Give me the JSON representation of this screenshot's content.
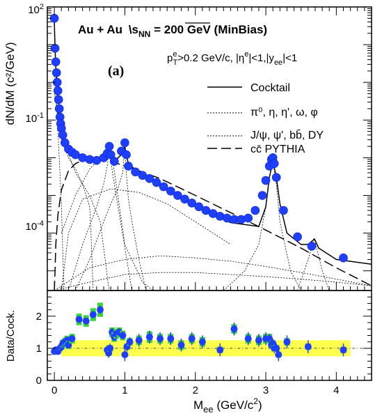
{
  "chart_data": [
    {
      "type": "scatter",
      "panel": "top",
      "title_parts": {
        "system": "Au + Au",
        "sqrt": "s",
        "sub": "NN",
        "rest": " = 200 GeV (MinBias)"
      },
      "cuts_parts": {
        "p": "p",
        "pe": "e",
        "pT": "T",
        "pt_cut": ">0.2 GeV/c, |",
        "eta": "η",
        "etae": "e",
        "eta_cut": "|<1,|y",
        "yee": "ee",
        "y_cut": "|<1"
      },
      "panel_label": "(a)",
      "ylabel": "dN/dM (c²/GeV)",
      "yscale": "log",
      "ylim": [
        3e-06,
        100
      ],
      "xlim": [
        -0.1,
        4.5
      ],
      "ytick_labels": [
        {
          "base": "10",
          "exp": "2",
          "value": 100
        },
        {
          "base": "10",
          "exp": "-1",
          "value": 0.1
        },
        {
          "base": "10",
          "exp": "-4",
          "value": 0.0001
        }
      ],
      "legend": [
        {
          "label": "Cocktail",
          "style": "solid"
        },
        {
          "label": "π⁰, η, η', ω, φ",
          "style": "dotted"
        },
        {
          "label": "J/ψ, ψ', bb̄, DY",
          "style": "dotted"
        },
        {
          "label": "cc̄ PYTHIA",
          "style": "dashed"
        }
      ],
      "series": [
        {
          "style": "points",
          "color": "#1f3fff",
          "x": [
            0.0,
            0.01,
            0.02,
            0.03,
            0.04,
            0.05,
            0.06,
            0.07,
            0.08,
            0.09,
            0.1,
            0.12,
            0.15,
            0.2,
            0.25,
            0.3,
            0.4,
            0.5,
            0.6,
            0.7,
            0.75,
            0.78,
            0.8,
            0.85,
            0.95,
            1.0,
            1.02,
            1.05,
            1.15,
            1.25,
            1.35,
            1.45,
            1.55,
            1.65,
            1.75,
            1.85,
            1.95,
            2.05,
            2.15,
            2.25,
            2.35,
            2.45,
            2.55,
            2.65,
            2.75,
            2.85,
            2.95,
            3.0,
            3.05,
            3.08,
            3.1,
            3.12,
            3.15,
            3.25,
            3.45,
            3.65,
            4.1
          ],
          "y": [
            50,
            8,
            3.5,
            1.8,
            1.0,
            0.6,
            0.35,
            0.2,
            0.12,
            0.08,
            0.06,
            0.04,
            0.025,
            0.017,
            0.014,
            0.012,
            0.01,
            0.009,
            0.0085,
            0.01,
            0.013,
            0.02,
            0.012,
            0.008,
            0.015,
            0.025,
            0.012,
            0.006,
            0.0042,
            0.0034,
            0.0028,
            0.0022,
            0.0017,
            0.0013,
            0.001,
            0.0008,
            0.00063,
            0.0005,
            0.0004,
            0.00033,
            0.00028,
            0.00025,
            0.00023,
            0.00023,
            0.00025,
            0.0004,
            0.001,
            0.0025,
            0.006,
            0.009,
            0.01,
            0.007,
            0.003,
            0.0004,
            8e-05,
            4.5e-05,
            2.2e-05
          ]
        },
        {
          "style": "solid",
          "name": "Cocktail",
          "x": [
            0.0,
            0.01,
            0.02,
            0.04,
            0.06,
            0.08,
            0.1,
            0.15,
            0.2,
            0.3,
            0.4,
            0.5,
            0.6,
            0.7,
            0.75,
            0.78,
            0.8,
            0.85,
            0.95,
            1.0,
            1.02,
            1.05,
            1.2,
            1.5,
            2.0,
            2.5,
            2.9,
            3.0,
            3.05,
            3.1,
            3.15,
            3.2,
            3.3,
            3.5,
            3.6,
            3.69,
            3.75,
            4.0,
            4.5
          ],
          "y": [
            40,
            8,
            2.5,
            0.8,
            0.3,
            0.12,
            0.07,
            0.03,
            0.017,
            0.011,
            0.009,
            0.008,
            0.008,
            0.01,
            0.013,
            0.025,
            0.012,
            0.008,
            0.012,
            0.02,
            0.012,
            0.007,
            0.004,
            0.0018,
            0.0005,
            0.00019,
            0.00015,
            0.0005,
            0.003,
            0.008,
            0.003,
            0.0006,
            0.0001,
            5e-05,
            5e-05,
            7e-05,
            4e-05,
            2e-05,
            1.5e-05
          ]
        },
        {
          "style": "dashed",
          "name": "cc̄ PYTHIA",
          "x": [
            0.0,
            0.01,
            0.02,
            0.05,
            0.1,
            0.2,
            0.3,
            0.4,
            0.5,
            0.6,
            0.7,
            0.8,
            1.0,
            1.2,
            1.5,
            2.0,
            2.5,
            3.0,
            3.5,
            4.0,
            4.5
          ],
          "y": [
            3e-06,
            1e-05,
            5e-05,
            0.0003,
            0.0014,
            0.0045,
            0.007,
            0.0085,
            0.009,
            0.009,
            0.0085,
            0.008,
            0.006,
            0.0045,
            0.0028,
            0.001,
            0.00035,
            0.00012,
            4e-05,
            1.2e-05,
            4e-06
          ]
        },
        {
          "style": "dotted",
          "x": [
            0.0,
            0.02,
            0.05,
            0.08,
            0.1,
            0.12,
            0.13,
            0.135
          ],
          "y": [
            35,
            2,
            0.05,
            0.004,
            0.0005,
            3e-05,
            8e-06,
            3e-06
          ]
        },
        {
          "style": "dotted",
          "x": [
            0.0,
            0.02,
            0.05,
            0.1,
            0.2,
            0.3,
            0.4,
            0.5,
            0.52,
            0.54,
            0.55
          ],
          "y": [
            1.5,
            0.4,
            0.1,
            0.03,
            0.01,
            0.005,
            0.002,
            0.0005,
            0.0001,
            1e-05,
            3e-06
          ]
        },
        {
          "style": "dotted",
          "x": [
            0.0,
            0.1,
            0.3,
            0.5,
            0.65,
            0.72,
            0.76,
            0.78
          ],
          "y": [
            0.5,
            0.04,
            0.004,
            0.001,
            0.0002,
            2e-05,
            5e-06,
            3e-06
          ]
        },
        {
          "style": "dotted",
          "x": [
            0.2,
            0.4,
            0.6,
            0.7,
            0.75,
            0.78,
            0.81,
            0.86,
            0.95,
            1.1
          ],
          "y": [
            3e-06,
            5e-05,
            0.0005,
            0.002,
            0.006,
            0.02,
            0.006,
            0.0015,
            0.00015,
            3e-06
          ]
        },
        {
          "style": "dotted",
          "x": [
            0.3,
            0.5,
            0.7,
            0.8,
            0.9,
            0.97,
            1.0,
            1.02,
            1.05,
            1.1,
            1.2,
            1.3
          ],
          "y": [
            3e-06,
            2e-05,
            0.0002,
            0.0006,
            0.0015,
            0.004,
            0.02,
            0.004,
            0.0008,
            0.0002,
            2e-05,
            3e-06
          ]
        },
        {
          "style": "dotted",
          "x": [
            0.1,
            0.2,
            0.4,
            0.8,
            1.2,
            1.6,
            2.0,
            2.5
          ],
          "y": [
            3e-06,
            0.0001,
            0.0008,
            0.0015,
            0.0012,
            0.0006,
            0.0002,
            5e-05
          ]
        },
        {
          "style": "dotted",
          "x": [
            0.1,
            0.3,
            0.5,
            0.8,
            1.0,
            1.25,
            1.4,
            1.5
          ],
          "y": [
            0.0001,
            0.001,
            0.005,
            0.02,
            5e-05,
            5e-06,
            3e-06,
            3e-06
          ]
        },
        {
          "style": "dotted",
          "x": [
            0.0,
            0.5,
            1.0,
            1.5,
            2.0,
            2.5,
            3.0,
            3.5,
            4.0,
            4.5
          ],
          "y": [
            3e-06,
            1.2e-05,
            2e-05,
            2.5e-05,
            2.2e-05,
            1.8e-05,
            1.3e-05,
            9e-06,
            6e-06,
            4e-06
          ]
        },
        {
          "style": "dotted",
          "x": [
            0.0,
            0.5,
            1.0,
            1.5,
            2.0,
            2.5,
            3.0,
            3.5,
            4.0,
            4.5
          ],
          "y": [
            3e-06,
            5e-06,
            8e-06,
            9e-06,
            9e-06,
            8e-06,
            7e-06,
            6e-06,
            5e-06,
            4e-06
          ]
        },
        {
          "style": "dotted",
          "x": [
            2.4,
            2.7,
            2.9,
            3.0,
            3.05,
            3.1,
            3.15,
            3.2,
            3.35,
            3.5
          ],
          "y": [
            3e-06,
            1e-05,
            5e-05,
            0.0005,
            0.003,
            0.008,
            0.002,
            0.0002,
            1e-05,
            3e-06
          ]
        },
        {
          "style": "dotted",
          "x": [
            3.45,
            3.6,
            3.69,
            3.8,
            3.9
          ],
          "y": [
            3e-06,
            2e-05,
            7e-05,
            1e-05,
            3e-06
          ]
        }
      ]
    },
    {
      "type": "scatter",
      "panel": "bottom",
      "ylabel": "Data/Cock.",
      "xlabel_parts": {
        "main": "M",
        "sub": "ee",
        "mid": " (GeV/c",
        "sup": "2",
        "end": ")"
      },
      "xlim": [
        -0.1,
        4.5
      ],
      "ylim": [
        0,
        2.8
      ],
      "x_ticks": [
        "0",
        "1",
        "2",
        "3",
        "4"
      ],
      "y_ticks": [
        "0",
        "1",
        "2"
      ],
      "x_tick_values": [
        0,
        1,
        2,
        3,
        4
      ],
      "y_tick_values": [
        0,
        1,
        2
      ],
      "band": {
        "color": "#ffff4d",
        "x": [
          0.1,
          4.2
        ],
        "y": [
          0.75,
          1.25
        ]
      },
      "colors": {
        "points": "#1f3fff",
        "syst": "#3ad43a",
        "reference": "#333333"
      },
      "x": [
        0.0,
        0.02,
        0.05,
        0.08,
        0.1,
        0.12,
        0.15,
        0.18,
        0.2,
        0.25,
        0.35,
        0.45,
        0.55,
        0.65,
        0.75,
        0.77,
        0.79,
        0.82,
        0.85,
        0.88,
        0.92,
        0.97,
        1.0,
        1.03,
        1.07,
        1.2,
        1.35,
        1.5,
        1.65,
        1.8,
        1.95,
        2.1,
        2.35,
        2.55,
        2.75,
        2.9,
        3.0,
        3.05,
        3.08,
        3.1,
        3.12,
        3.15,
        3.18,
        3.3,
        3.6,
        4.1
      ],
      "y": [
        0.9,
        0.95,
        0.9,
        1.0,
        1.05,
        1.15,
        1.2,
        1.25,
        1.1,
        1.3,
        1.9,
        1.85,
        2.05,
        2.2,
        0.95,
        0.85,
        1.0,
        1.5,
        1.35,
        1.45,
        1.5,
        1.4,
        0.8,
        1.05,
        1.2,
        1.25,
        1.35,
        1.3,
        1.3,
        1.1,
        1.3,
        1.2,
        0.95,
        1.6,
        1.3,
        1.25,
        1.3,
        1.3,
        1.1,
        1.15,
        1.0,
        1.0,
        0.8,
        1.2,
        1.05,
        0.95
      ],
      "stat_err": [
        0.07,
        0.07,
        0.07,
        0.07,
        0.07,
        0.07,
        0.08,
        0.08,
        0.08,
        0.1,
        0.1,
        0.1,
        0.1,
        0.12,
        0.15,
        0.15,
        0.15,
        0.12,
        0.12,
        0.12,
        0.12,
        0.12,
        0.2,
        0.15,
        0.15,
        0.2,
        0.2,
        0.2,
        0.2,
        0.2,
        0.2,
        0.2,
        0.2,
        0.2,
        0.2,
        0.2,
        0.2,
        0.15,
        0.15,
        0.15,
        0.15,
        0.15,
        0.2,
        0.2,
        0.2,
        0.2
      ],
      "syst_err": [
        0.08,
        0.08,
        0.08,
        0.08,
        0.1,
        0.12,
        0.12,
        0.14,
        0.12,
        0.15,
        0.18,
        0.18,
        0.2,
        0.22,
        0.08,
        0.08,
        0.1,
        0.15,
        0.15,
        0.15,
        0.15,
        0.15,
        0.08,
        0.1,
        0.12,
        0.15,
        0.18,
        0.15,
        0.15,
        0.15,
        0.15,
        0.15,
        0.1,
        0.15,
        0.15,
        0.15,
        0.15,
        0.15,
        0.1,
        0.1,
        0.1,
        0.1,
        0.08,
        0.12,
        0.1,
        0.1
      ]
    }
  ]
}
